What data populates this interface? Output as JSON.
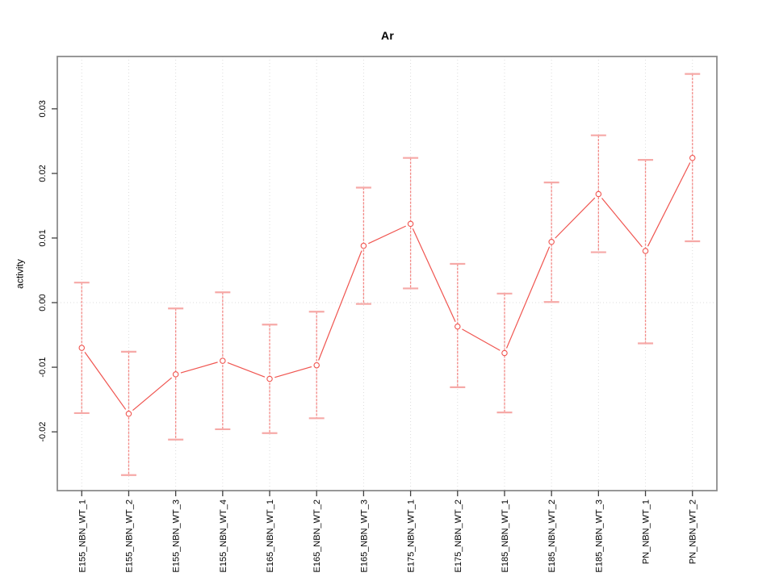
{
  "chart_data": {
    "type": "line",
    "title": "Ar",
    "xlabel": "",
    "ylabel": "activity",
    "legend_position": "none",
    "marker": "open-circle",
    "line_style": "points-joined-with-gaps",
    "error_bars": true,
    "categories": [
      "E155_NBN_WT_1",
      "E155_NBN_WT_2",
      "E155_NBN_WT_3",
      "E155_NBN_WT_4",
      "E165_NBN_WT_1",
      "E165_NBN_WT_2",
      "E165_NBN_WT_3",
      "E175_NBN_WT_1",
      "E175_NBN_WT_2",
      "E185_NBN_WT_1",
      "E185_NBN_WT_2",
      "E185_NBN_WT_3",
      "PN_NBN_WT_1",
      "PN_NBN_WT_2"
    ],
    "series": [
      {
        "name": "activity",
        "values": [
          -0.007,
          -0.0172,
          -0.0111,
          -0.009,
          -0.0118,
          -0.0097,
          0.0088,
          0.0122,
          -0.0037,
          -0.0078,
          0.0094,
          0.0168,
          0.008,
          0.0224
        ],
        "error_high": [
          0.0031,
          -0.0076,
          -0.0009,
          0.0016,
          -0.0034,
          -0.0014,
          0.0178,
          0.0224,
          0.006,
          0.0014,
          0.0186,
          0.0259,
          0.0221,
          0.0354
        ],
        "error_low": [
          -0.0171,
          -0.0267,
          -0.0212,
          -0.0196,
          -0.0202,
          -0.0179,
          -0.0002,
          0.0022,
          -0.0131,
          -0.017,
          0.0001,
          0.0078,
          -0.0063,
          0.0095
        ]
      }
    ],
    "ylim": [
      -0.0291,
      0.0381
    ],
    "xlim": [
      0.48,
      14.52
    ],
    "ytick_values": [
      0.03,
      0.02,
      0.01,
      0,
      -0.01,
      -0.02
    ],
    "ytick_labels": [
      "0.03",
      "0.02",
      "0.01",
      "0.00",
      "-0.01",
      "-0.02"
    ],
    "grid": {
      "vertical_dotted_at_each_category": true,
      "horizontal_dotted_at_zero": true
    },
    "colors": {
      "series": "#F05550",
      "error_line": "#F37F7C",
      "error_cap": "#F6A9A7",
      "grid": "#DCDCDC",
      "box": "#8C8C8C",
      "tick": "#404040",
      "text": "#000000",
      "background": "#FFFFFF",
      "marker_fill": "#FFFFFF"
    }
  }
}
